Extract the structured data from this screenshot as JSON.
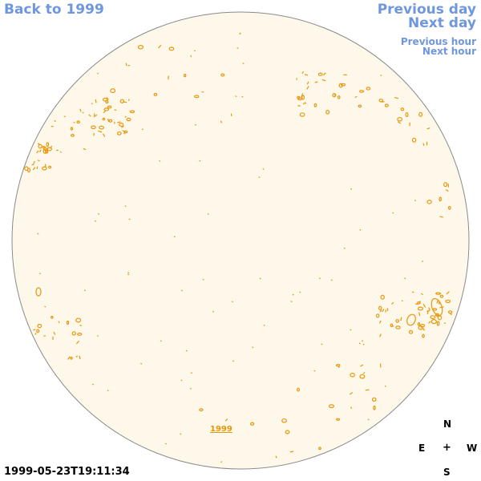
{
  "nav": {
    "back": "Back to 1999",
    "previous_day": "Previous day",
    "next_day": "Next day",
    "previous_hour": "Previous hour",
    "next_hour": "Next hour"
  },
  "timestamp": "1999-05-23T19:11:34",
  "compass": {
    "north": "N",
    "south": "S",
    "east": "E",
    "west": "W",
    "center": "+"
  },
  "disk_label": "1999",
  "colors": {
    "disk_fill": "#fdf8ea",
    "disk_stroke": "#8a8a8a",
    "contour": "#e8960a",
    "link": "#6f97dd"
  }
}
